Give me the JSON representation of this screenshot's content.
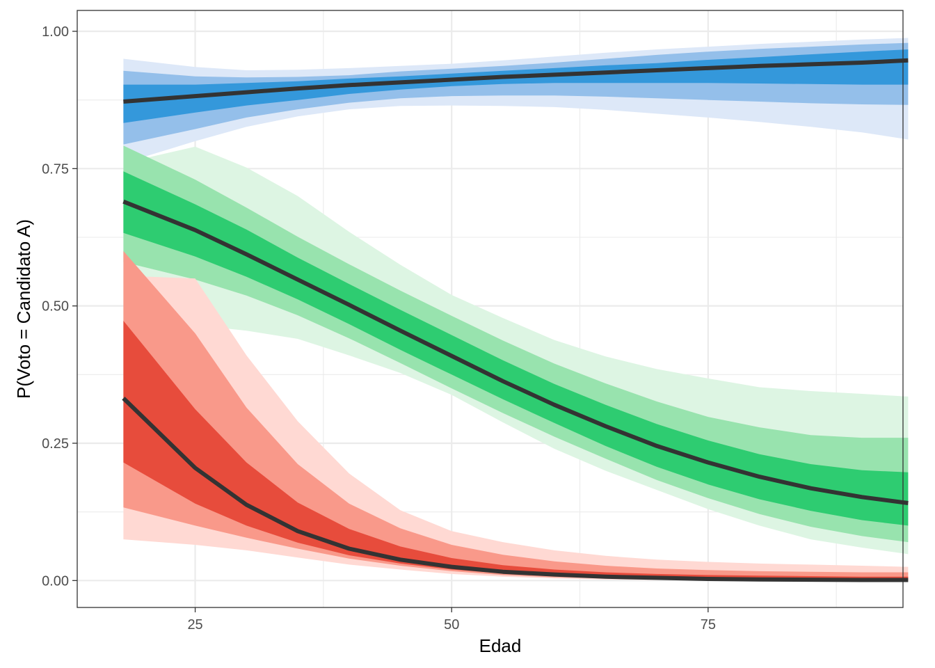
{
  "chart_data": {
    "type": "area",
    "title": "",
    "xlabel": "Edad",
    "ylabel": "P(Voto = Candidato A)",
    "xlim": [
      13.5,
      94
    ],
    "ylim": [
      -0.049,
      1.038
    ],
    "xticks": [
      25,
      50,
      75
    ],
    "xtick_labels": [
      "25",
      "50",
      "75"
    ],
    "yticks": [
      0,
      0.25,
      0.5,
      0.75,
      1
    ],
    "ytick_labels": [
      "0.00",
      "0.25",
      "0.50",
      "0.75",
      "1.00"
    ],
    "grid": true,
    "legend": "none",
    "x": [
      18,
      25,
      30,
      35,
      40,
      45,
      50,
      55,
      60,
      65,
      70,
      75,
      80,
      85,
      90,
      94.5
    ],
    "series": [
      {
        "color": "#3498db",
        "color_mid": "#94bfea",
        "color_light": "#dde8f8",
        "line_color": "#333333",
        "values": [
          0.872,
          0.882,
          0.889,
          0.896,
          0.902,
          0.907,
          0.912,
          0.917,
          0.921,
          0.925,
          0.929,
          0.933,
          0.937,
          0.94,
          0.943,
          0.947
        ],
        "band_50": [
          [
            0.833,
            0.903
          ],
          [
            0.852,
            0.903
          ],
          [
            0.865,
            0.906
          ],
          [
            0.875,
            0.909
          ],
          [
            0.886,
            0.914
          ],
          [
            0.894,
            0.918
          ],
          [
            0.9,
            0.923
          ],
          [
            0.904,
            0.928
          ],
          [
            0.906,
            0.933
          ],
          [
            0.906,
            0.938
          ],
          [
            0.906,
            0.942
          ],
          [
            0.906,
            0.948
          ],
          [
            0.905,
            0.953
          ],
          [
            0.904,
            0.958
          ],
          [
            0.903,
            0.963
          ],
          [
            0.903,
            0.967
          ]
        ],
        "band_80": [
          [
            0.794,
            0.928
          ],
          [
            0.822,
            0.918
          ],
          [
            0.843,
            0.916
          ],
          [
            0.858,
            0.917
          ],
          [
            0.87,
            0.92
          ],
          [
            0.878,
            0.927
          ],
          [
            0.882,
            0.932
          ],
          [
            0.883,
            0.937
          ],
          [
            0.883,
            0.943
          ],
          [
            0.881,
            0.95
          ],
          [
            0.878,
            0.957
          ],
          [
            0.875,
            0.963
          ],
          [
            0.872,
            0.968
          ],
          [
            0.869,
            0.972
          ],
          [
            0.867,
            0.976
          ],
          [
            0.866,
            0.979
          ]
        ],
        "band_95": [
          [
            0.76,
            0.95
          ],
          [
            0.8,
            0.935
          ],
          [
            0.826,
            0.929
          ],
          [
            0.845,
            0.93
          ],
          [
            0.858,
            0.933
          ],
          [
            0.864,
            0.937
          ],
          [
            0.865,
            0.941
          ],
          [
            0.864,
            0.947
          ],
          [
            0.862,
            0.954
          ],
          [
            0.857,
            0.961
          ],
          [
            0.85,
            0.967
          ],
          [
            0.843,
            0.972
          ],
          [
            0.835,
            0.977
          ],
          [
            0.826,
            0.981
          ],
          [
            0.816,
            0.985
          ],
          [
            0.803,
            0.988
          ]
        ]
      },
      {
        "color": "#2ecc71",
        "color_mid": "#98e3ae",
        "color_light": "#ddf5e3",
        "line_color": "#333333",
        "values": [
          0.69,
          0.638,
          0.594,
          0.548,
          0.502,
          0.455,
          0.409,
          0.363,
          0.32,
          0.281,
          0.245,
          0.215,
          0.189,
          0.168,
          0.152,
          0.141
        ],
        "band_50": [
          [
            0.633,
            0.745
          ],
          [
            0.59,
            0.685
          ],
          [
            0.553,
            0.639
          ],
          [
            0.512,
            0.588
          ],
          [
            0.467,
            0.54
          ],
          [
            0.42,
            0.493
          ],
          [
            0.375,
            0.447
          ],
          [
            0.33,
            0.401
          ],
          [
            0.287,
            0.358
          ],
          [
            0.245,
            0.32
          ],
          [
            0.207,
            0.285
          ],
          [
            0.175,
            0.255
          ],
          [
            0.148,
            0.23
          ],
          [
            0.127,
            0.212
          ],
          [
            0.11,
            0.201
          ],
          [
            0.1,
            0.197
          ]
        ],
        "band_80": [
          [
            0.58,
            0.792
          ],
          [
            0.548,
            0.73
          ],
          [
            0.519,
            0.679
          ],
          [
            0.483,
            0.626
          ],
          [
            0.441,
            0.576
          ],
          [
            0.396,
            0.528
          ],
          [
            0.35,
            0.482
          ],
          [
            0.305,
            0.437
          ],
          [
            0.262,
            0.395
          ],
          [
            0.222,
            0.359
          ],
          [
            0.183,
            0.326
          ],
          [
            0.15,
            0.298
          ],
          [
            0.121,
            0.279
          ],
          [
            0.098,
            0.265
          ],
          [
            0.081,
            0.26
          ],
          [
            0.07,
            0.26
          ]
        ],
        "band_95": [
          [
            0.47,
            0.76
          ],
          [
            0.465,
            0.79
          ],
          [
            0.455,
            0.752
          ],
          [
            0.44,
            0.7
          ],
          [
            0.41,
            0.635
          ],
          [
            0.378,
            0.575
          ],
          [
            0.338,
            0.52
          ],
          [
            0.288,
            0.478
          ],
          [
            0.24,
            0.438
          ],
          [
            0.2,
            0.408
          ],
          [
            0.165,
            0.385
          ],
          [
            0.13,
            0.368
          ],
          [
            0.1,
            0.352
          ],
          [
            0.075,
            0.345
          ],
          [
            0.06,
            0.34
          ],
          [
            0.048,
            0.335
          ]
        ]
      },
      {
        "color": "#e74c3c",
        "color_mid": "#f9998a",
        "color_light": "#ffd9d3",
        "line_color": "#333333",
        "values": [
          0.332,
          0.205,
          0.138,
          0.09,
          0.058,
          0.038,
          0.025,
          0.016,
          0.011,
          0.007,
          0.005,
          0.003,
          0.002,
          0.0015,
          0.001,
          0.001
        ],
        "band_50": [
          [
            0.215,
            0.473
          ],
          [
            0.14,
            0.312
          ],
          [
            0.1,
            0.215
          ],
          [
            0.069,
            0.142
          ],
          [
            0.046,
            0.094
          ],
          [
            0.031,
            0.062
          ],
          [
            0.02,
            0.041
          ],
          [
            0.013,
            0.028
          ],
          [
            0.008,
            0.02
          ],
          [
            0.005,
            0.015
          ],
          [
            0.003,
            0.012
          ],
          [
            0.002,
            0.01
          ],
          [
            0.001,
            0.009
          ],
          [
            0.0008,
            0.008
          ],
          [
            0.0005,
            0.007
          ],
          [
            0.0003,
            0.007
          ]
        ],
        "band_80": [
          [
            0.133,
            0.6
          ],
          [
            0.1,
            0.45
          ],
          [
            0.078,
            0.315
          ],
          [
            0.058,
            0.212
          ],
          [
            0.04,
            0.14
          ],
          [
            0.027,
            0.095
          ],
          [
            0.017,
            0.065
          ],
          [
            0.01,
            0.047
          ],
          [
            0.006,
            0.035
          ],
          [
            0.004,
            0.027
          ],
          [
            0.002,
            0.022
          ],
          [
            0.001,
            0.019
          ],
          [
            0.0008,
            0.017
          ],
          [
            0.0005,
            0.016
          ],
          [
            0.0003,
            0.015
          ],
          [
            0.0002,
            0.015
          ]
        ],
        "band_95": [
          [
            0.075,
            0.555
          ],
          [
            0.065,
            0.55
          ],
          [
            0.055,
            0.41
          ],
          [
            0.042,
            0.29
          ],
          [
            0.029,
            0.195
          ],
          [
            0.02,
            0.128
          ],
          [
            0.012,
            0.09
          ],
          [
            0.007,
            0.07
          ],
          [
            0.004,
            0.055
          ],
          [
            0.002,
            0.045
          ],
          [
            0.001,
            0.038
          ],
          [
            0.0008,
            0.034
          ],
          [
            0.0005,
            0.031
          ],
          [
            0.0003,
            0.029
          ],
          [
            0.0002,
            0.027
          ],
          [
            0.0001,
            0.025
          ]
        ]
      }
    ]
  }
}
